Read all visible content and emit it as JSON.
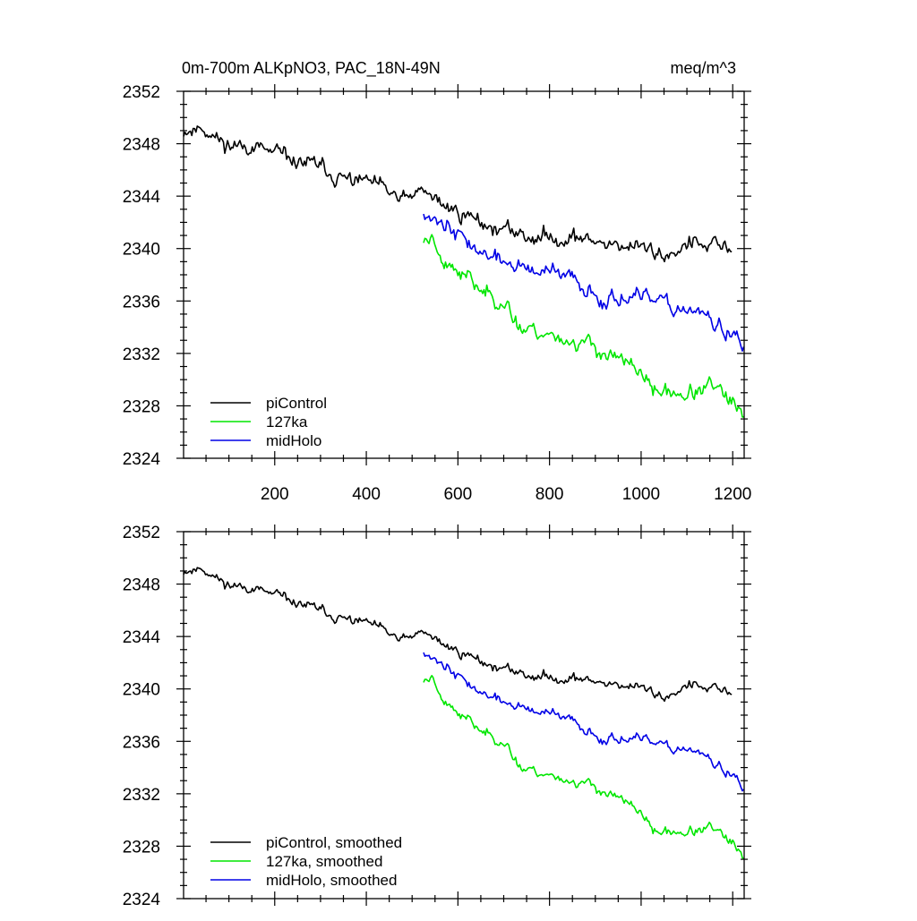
{
  "chart_data": [
    {
      "type": "line",
      "title": "0m-700m ALKpNO3, PAC_18N-49N",
      "units": "meq/m^3",
      "xlabel": "",
      "ylabel": "",
      "xlim": [
        1,
        1225
      ],
      "ylim": [
        2324,
        2352
      ],
      "xticks": [
        200,
        400,
        600,
        800,
        1000,
        1200
      ],
      "yticks": [
        2324,
        2328,
        2332,
        2336,
        2340,
        2344,
        2348,
        2352
      ],
      "show_x_tick_labels": true,
      "legend_position": "bottom-left",
      "series": [
        {
          "name": "piControl",
          "color": "#000000",
          "noise": 0.75,
          "seed": 11,
          "x_start": 1,
          "x_end": 1200,
          "anchors": [
            [
              1,
              2349.0
            ],
            [
              40,
              2349.4
            ],
            [
              100,
              2348.0
            ],
            [
              200,
              2347.3
            ],
            [
              300,
              2346.2
            ],
            [
              400,
              2345.0
            ],
            [
              470,
              2343.5
            ],
            [
              530,
              2344.2
            ],
            [
              600,
              2342.7
            ],
            [
              700,
              2341.4
            ],
            [
              800,
              2340.9
            ],
            [
              900,
              2340.6
            ],
            [
              1000,
              2339.9
            ],
            [
              1050,
              2339.4
            ],
            [
              1100,
              2340.2
            ],
            [
              1200,
              2339.8
            ]
          ]
        },
        {
          "name": "127ka",
          "color": "#00e600",
          "noise": 0.75,
          "seed": 23,
          "x_start": 525,
          "x_end": 1225,
          "anchors": [
            [
              525,
              2340.6
            ],
            [
              545,
              2341.0
            ],
            [
              560,
              2339.5
            ],
            [
              600,
              2338.0
            ],
            [
              650,
              2336.8
            ],
            [
              700,
              2336.0
            ],
            [
              740,
              2334.0
            ],
            [
              800,
              2333.4
            ],
            [
              900,
              2332.6
            ],
            [
              950,
              2331.6
            ],
            [
              1000,
              2330.6
            ],
            [
              1030,
              2329.0
            ],
            [
              1100,
              2329.1
            ],
            [
              1150,
              2329.5
            ],
            [
              1200,
              2328.2
            ],
            [
              1225,
              2326.6
            ]
          ]
        },
        {
          "name": "midHolo",
          "color": "#0000e6",
          "noise": 0.75,
          "seed": 37,
          "x_start": 525,
          "x_end": 1225,
          "anchors": [
            [
              525,
              2343.0
            ],
            [
              560,
              2342.0
            ],
            [
              600,
              2340.8
            ],
            [
              650,
              2339.5
            ],
            [
              700,
              2339.0
            ],
            [
              800,
              2338.0
            ],
            [
              850,
              2337.6
            ],
            [
              900,
              2336.4
            ],
            [
              1000,
              2336.0
            ],
            [
              1050,
              2335.5
            ],
            [
              1100,
              2335.6
            ],
            [
              1150,
              2334.6
            ],
            [
              1200,
              2333.4
            ],
            [
              1225,
              2331.8
            ]
          ]
        }
      ]
    },
    {
      "type": "line",
      "title": "",
      "units": "",
      "xlabel": "",
      "ylabel": "",
      "xlim": [
        1,
        1225
      ],
      "ylim": [
        2324,
        2352
      ],
      "xticks": [
        200,
        400,
        600,
        800,
        1000,
        1200
      ],
      "yticks": [
        2324,
        2328,
        2332,
        2336,
        2340,
        2344,
        2348,
        2352
      ],
      "show_x_tick_labels": false,
      "legend_position": "bottom-left",
      "series": [
        {
          "name": "piControl, smoothed",
          "color": "#000000",
          "noise": 0.45,
          "seed": 11,
          "x_start": 1,
          "x_end": 1200,
          "anchors": [
            [
              1,
              2349.0
            ],
            [
              40,
              2349.3
            ],
            [
              100,
              2348.0
            ],
            [
              200,
              2347.2
            ],
            [
              300,
              2346.0
            ],
            [
              400,
              2345.0
            ],
            [
              470,
              2343.6
            ],
            [
              530,
              2344.2
            ],
            [
              600,
              2342.8
            ],
            [
              700,
              2341.5
            ],
            [
              800,
              2340.9
            ],
            [
              900,
              2340.6
            ],
            [
              1000,
              2340.0
            ],
            [
              1050,
              2339.3
            ],
            [
              1100,
              2340.2
            ],
            [
              1200,
              2339.6
            ]
          ]
        },
        {
          "name": "127ka, smoothed",
          "color": "#00e600",
          "noise": 0.45,
          "seed": 23,
          "x_start": 525,
          "x_end": 1225,
          "anchors": [
            [
              525,
              2340.6
            ],
            [
              545,
              2341.0
            ],
            [
              560,
              2339.6
            ],
            [
              600,
              2338.0
            ],
            [
              650,
              2336.8
            ],
            [
              700,
              2336.0
            ],
            [
              740,
              2334.0
            ],
            [
              800,
              2333.4
            ],
            [
              900,
              2332.6
            ],
            [
              950,
              2331.7
            ],
            [
              1000,
              2330.6
            ],
            [
              1030,
              2329.0
            ],
            [
              1100,
              2329.2
            ],
            [
              1150,
              2329.4
            ],
            [
              1200,
              2328.2
            ],
            [
              1225,
              2326.7
            ]
          ]
        },
        {
          "name": "midHolo, smoothed",
          "color": "#0000e6",
          "noise": 0.45,
          "seed": 37,
          "x_start": 525,
          "x_end": 1225,
          "anchors": [
            [
              525,
              2343.0
            ],
            [
              560,
              2342.0
            ],
            [
              600,
              2340.8
            ],
            [
              650,
              2339.6
            ],
            [
              700,
              2339.0
            ],
            [
              800,
              2338.0
            ],
            [
              850,
              2337.5
            ],
            [
              900,
              2336.4
            ],
            [
              1000,
              2336.0
            ],
            [
              1050,
              2335.4
            ],
            [
              1100,
              2335.6
            ],
            [
              1150,
              2334.6
            ],
            [
              1200,
              2333.4
            ],
            [
              1225,
              2331.9
            ]
          ]
        }
      ]
    }
  ]
}
